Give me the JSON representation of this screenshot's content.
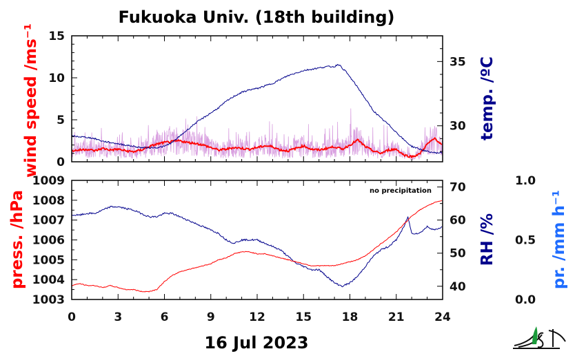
{
  "chart_data": [
    {
      "type": "line",
      "title": "Fukuoka Univ. (18th building)",
      "ylabel": "wind speed /ms⁻¹",
      "y2label": "temp. /ºC",
      "ylim": [
        0,
        15
      ],
      "yticks": [
        0,
        5,
        10,
        15
      ],
      "y2lim": [
        27.2,
        37.0
      ],
      "y2ticks": [
        30,
        35
      ],
      "xlim": [
        0,
        24
      ],
      "colors": {
        "wind_raw": "#d9a0e0",
        "wind_mean": "#ff0000",
        "temp": "#00008b"
      },
      "series": [
        {
          "key": "temp",
          "x": [
            0,
            0.5,
            1,
            1.5,
            2,
            2.5,
            3,
            3.5,
            4,
            4.5,
            5,
            5.5,
            6,
            6.5,
            7,
            7.5,
            8,
            8.5,
            9,
            9.5,
            10,
            10.5,
            11,
            11.5,
            12,
            12.5,
            13,
            13.5,
            14,
            14.5,
            15,
            15.5,
            16,
            16.5,
            17,
            17.25,
            17.5,
            17.75,
            18,
            18.5,
            19,
            19.5,
            20,
            20.5,
            21,
            21.5,
            22,
            22.5,
            23,
            23.5,
            24
          ],
          "values": [
            29.2,
            29.15,
            29.1,
            29.0,
            28.8,
            28.7,
            28.6,
            28.5,
            28.4,
            28.3,
            28.3,
            28.3,
            28.4,
            28.7,
            29.2,
            29.7,
            30.2,
            30.6,
            31.0,
            31.4,
            31.9,
            32.3,
            32.6,
            32.8,
            32.9,
            33.1,
            33.3,
            33.6,
            33.9,
            34.1,
            34.3,
            34.4,
            34.5,
            34.6,
            34.6,
            34.8,
            34.5,
            34.2,
            33.8,
            33.0,
            32.1,
            31.2,
            30.6,
            30.1,
            29.5,
            28.9,
            28.4,
            28.2,
            28.0,
            27.9,
            27.9
          ]
        },
        {
          "key": "wind_mean",
          "x": [
            0,
            0.5,
            1,
            1.5,
            2,
            2.5,
            3,
            3.5,
            4,
            4.5,
            5,
            5.5,
            6,
            6.5,
            7,
            7.5,
            8,
            8.5,
            9,
            9.5,
            10,
            10.5,
            11,
            11.5,
            12,
            12.5,
            13,
            13.5,
            14,
            14.5,
            15,
            15.5,
            16,
            16.5,
            17,
            17.5,
            18,
            18.5,
            19,
            19.5,
            20,
            20.5,
            21,
            21.5,
            22,
            22.5,
            23,
            23.5,
            24
          ],
          "values": [
            1.3,
            1.4,
            1.5,
            1.3,
            1.6,
            1.4,
            1.5,
            1.3,
            1.2,
            1.4,
            1.8,
            2.1,
            2.3,
            2.4,
            2.5,
            2.3,
            2.2,
            2.0,
            1.7,
            1.4,
            1.5,
            1.7,
            1.6,
            1.5,
            1.7,
            1.9,
            1.8,
            1.4,
            1.3,
            1.6,
            1.9,
            1.5,
            1.4,
            1.6,
            1.8,
            1.5,
            2.0,
            2.6,
            1.8,
            1.3,
            1.0,
            1.4,
            1.5,
            0.8,
            0.6,
            0.9,
            2.1,
            2.8,
            1.9
          ]
        }
      ]
    },
    {
      "type": "line",
      "ylabel": "press. /hPa",
      "y2label": "RH /%",
      "y3label": "pr. /mm h⁻¹",
      "ylim": [
        1003,
        1009
      ],
      "yticks": [
        1003,
        1004,
        1005,
        1006,
        1007,
        1008,
        1009
      ],
      "y2lim": [
        36,
        72
      ],
      "y2ticks": [
        40,
        50,
        60,
        70
      ],
      "y3ticks": [
        "0.0",
        "0.5",
        "1.0"
      ],
      "annotation": "no precipitation",
      "xlim": [
        0,
        24
      ],
      "xticks": [
        0,
        3,
        6,
        9,
        12,
        15,
        18,
        21,
        24
      ],
      "xlabel": "16 Jul 2023",
      "colors": {
        "pressure": "#ff0000",
        "rh": "#00008b"
      },
      "series": [
        {
          "key": "pressure",
          "x": [
            0,
            0.5,
            1,
            1.5,
            2,
            2.5,
            3,
            3.5,
            4,
            4.5,
            5,
            5.5,
            6,
            6.5,
            7,
            7.5,
            8,
            8.5,
            9,
            9.5,
            10,
            10.5,
            11,
            11.5,
            12,
            12.5,
            13,
            13.5,
            14,
            14.5,
            15,
            15.5,
            16,
            16.5,
            17,
            17.5,
            18,
            18.5,
            19,
            19.5,
            20,
            20.5,
            21,
            21.5,
            22,
            22.5,
            23,
            23.5,
            24
          ],
          "values": [
            1003.7,
            1003.8,
            1003.7,
            1003.7,
            1003.6,
            1003.7,
            1003.6,
            1003.5,
            1003.5,
            1003.4,
            1003.4,
            1003.5,
            1003.9,
            1004.2,
            1004.4,
            1004.5,
            1004.6,
            1004.7,
            1004.8,
            1005.0,
            1005.1,
            1005.3,
            1005.4,
            1005.4,
            1005.3,
            1005.3,
            1005.2,
            1005.1,
            1005.0,
            1004.9,
            1004.8,
            1004.7,
            1004.7,
            1004.7,
            1004.7,
            1004.8,
            1004.9,
            1005.0,
            1005.2,
            1005.5,
            1005.8,
            1006.1,
            1006.4,
            1006.8,
            1007.2,
            1007.5,
            1007.7,
            1007.9,
            1008.0
          ]
        },
        {
          "key": "rh",
          "x": [
            0,
            0.5,
            1,
            1.5,
            2,
            2.5,
            3,
            3.5,
            4,
            4.5,
            5,
            5.5,
            6,
            6.5,
            7,
            7.5,
            8,
            8.5,
            9,
            9.5,
            10,
            10.5,
            11,
            11.5,
            12,
            12.5,
            13,
            13.5,
            14,
            14.5,
            15,
            15.5,
            16,
            16.5,
            17,
            17.5,
            18,
            18.5,
            19,
            19.5,
            20,
            20.5,
            21,
            21.25,
            21.5,
            21.75,
            22,
            22.5,
            23,
            23.5,
            24
          ],
          "values": [
            61.5,
            61.5,
            62,
            62,
            63,
            64,
            64,
            63.5,
            63,
            62,
            61,
            61,
            62,
            62,
            61,
            60,
            59,
            58,
            57,
            56,
            54,
            53,
            54,
            54,
            54,
            53,
            52,
            51,
            49,
            47,
            46,
            45,
            45,
            43,
            41,
            40,
            41,
            43,
            46,
            49,
            51,
            52,
            54,
            56,
            58,
            61,
            56,
            56,
            58,
            57,
            58
          ]
        }
      ]
    }
  ]
}
